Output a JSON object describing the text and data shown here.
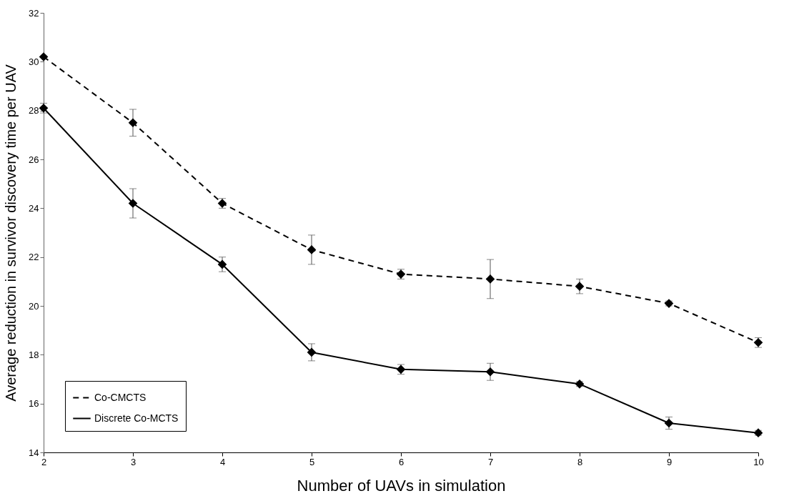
{
  "chart_data": {
    "type": "line",
    "xlabel": "Number of UAVs in simulation",
    "ylabel": "Average reduction in survivor discovery time per UAV",
    "x": [
      2,
      3,
      4,
      5,
      6,
      7,
      8,
      9,
      10
    ],
    "series": [
      {
        "name": "Co-CMCTS",
        "color": "#000000",
        "line_style": "dashed",
        "values": [
          30.2,
          27.5,
          24.2,
          22.3,
          21.3,
          21.1,
          20.8,
          20.1,
          18.5
        ],
        "errors": [
          null,
          0.55,
          0.2,
          0.6,
          0.2,
          0.8,
          0.3,
          0.1,
          0.2
        ]
      },
      {
        "name": "Discrete Co-MCTS",
        "color": "#000000",
        "line_style": "solid",
        "values": [
          28.1,
          24.2,
          21.7,
          18.1,
          17.4,
          17.3,
          16.8,
          15.2,
          14.8
        ],
        "errors": [
          0.2,
          0.6,
          0.3,
          0.35,
          0.2,
          0.35,
          0.1,
          0.25,
          0.1
        ]
      }
    ],
    "xlim": [
      2,
      10
    ],
    "xticks": [
      2,
      3,
      4,
      5,
      6,
      7,
      8,
      9,
      10
    ],
    "ylim": [
      14,
      32
    ],
    "yticks": [
      14,
      16,
      18,
      20,
      22,
      24,
      26,
      28,
      30,
      32
    ],
    "marker": "diamond",
    "legend": "bottom left",
    "grid": false
  }
}
